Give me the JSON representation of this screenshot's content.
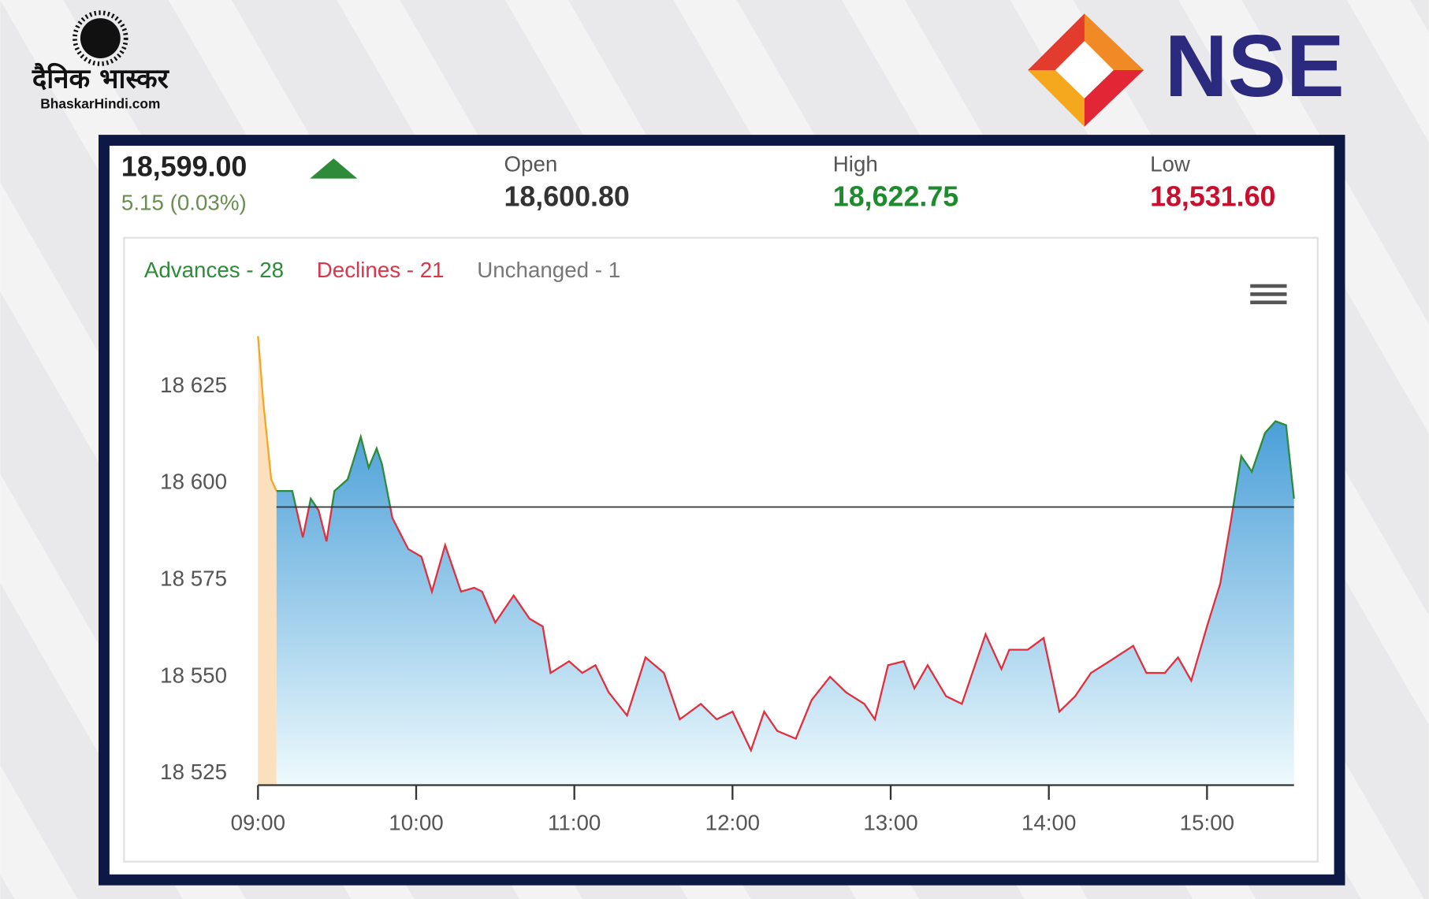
{
  "branding": {
    "publisher": "दैनिक भास्कर",
    "publisher_site": "BhaskarHindi.com",
    "exchange": "NSE"
  },
  "quote": {
    "last": "18,599.00",
    "change": "5.15 (0.03%)",
    "open_label": "Open",
    "open": "18,600.80",
    "high_label": "High",
    "high": "18,622.75",
    "low_label": "Low",
    "low": "18,531.60"
  },
  "chart_data": {
    "type": "area",
    "market_breadth": [
      {
        "text": "Advances - 28",
        "color": "#2e8b3a"
      },
      {
        "text": "Declines - 21",
        "color": "#d9364a"
      },
      {
        "text": "Unchanged - 1",
        "color": "#777777"
      }
    ],
    "xlim": [
      "09:00",
      "15:33"
    ],
    "xticks": [
      "09:00",
      "10:00",
      "11:00",
      "12:00",
      "13:00",
      "14:00",
      "15:00"
    ],
    "ylim": [
      18522,
      18646
    ],
    "yticks": [
      {
        "value": 18525,
        "label": "18 525"
      },
      {
        "value": 18550,
        "label": "18 550"
      },
      {
        "value": 18575,
        "label": "18 575"
      },
      {
        "value": 18600,
        "label": "18 600"
      },
      {
        "value": 18625,
        "label": "18 625"
      }
    ],
    "reference_line": 18593.85,
    "series": [
      {
        "color": "#f5a623",
        "fill": "#fbe0bd",
        "x": [
          "09:00",
          "09:02",
          "09:05",
          "09:07"
        ],
        "values": [
          18638,
          18621,
          18601,
          18598
        ]
      },
      {
        "color_above": "#2e8b3a",
        "color_below": "#e03040",
        "fill_top": "#4a9fd8",
        "fill_bottom": "#eefafd",
        "x": [
          "09:07",
          "09:13",
          "09:17",
          "09:20",
          "09:23",
          "09:26",
          "09:29",
          "09:34",
          "09:39",
          "09:42",
          "09:45",
          "09:47",
          "09:51",
          "09:57",
          "10:02",
          "10:06",
          "10:11",
          "10:17",
          "10:22",
          "10:25",
          "10:30",
          "10:37",
          "10:43",
          "10:48",
          "10:51",
          "10:58",
          "11:03",
          "11:08",
          "11:13",
          "11:20",
          "11:27",
          "11:34",
          "11:40",
          "11:48",
          "11:54",
          "12:00",
          "12:07",
          "12:12",
          "12:17",
          "12:24",
          "12:30",
          "12:37",
          "12:43",
          "12:50",
          "12:54",
          "12:59",
          "13:05",
          "13:09",
          "13:14",
          "13:21",
          "13:27",
          "13:31",
          "13:36",
          "13:42",
          "13:45",
          "13:52",
          "13:58",
          "14:04",
          "14:10",
          "14:16",
          "14:23",
          "14:32",
          "14:37",
          "14:44",
          "14:49",
          "14:54",
          "15:00",
          "15:05",
          "15:09",
          "15:13",
          "15:17",
          "15:22",
          "15:26",
          "15:30",
          "15:33"
        ],
        "values": [
          18598,
          18598,
          18586,
          18596,
          18593,
          18585,
          18598,
          18601,
          18612,
          18604,
          18609,
          18605,
          18591,
          18583,
          18581,
          18572,
          18584,
          18572,
          18573,
          18572,
          18564,
          18571,
          18565,
          18563,
          18551,
          18554,
          18551,
          18553,
          18546,
          18540,
          18555,
          18551,
          18539,
          18543,
          18539,
          18541,
          18531,
          18541,
          18536,
          18534,
          18544,
          18550,
          18546,
          18543,
          18539,
          18553,
          18554,
          18547,
          18553,
          18545,
          18543,
          18551,
          18561,
          18552,
          18557,
          18557,
          18560,
          18541,
          18545,
          18551,
          18554,
          18558,
          18551,
          18551,
          18555,
          18549,
          18563,
          18574,
          18590,
          18607,
          18603,
          18613,
          18616,
          18615,
          18596
        ]
      }
    ]
  }
}
